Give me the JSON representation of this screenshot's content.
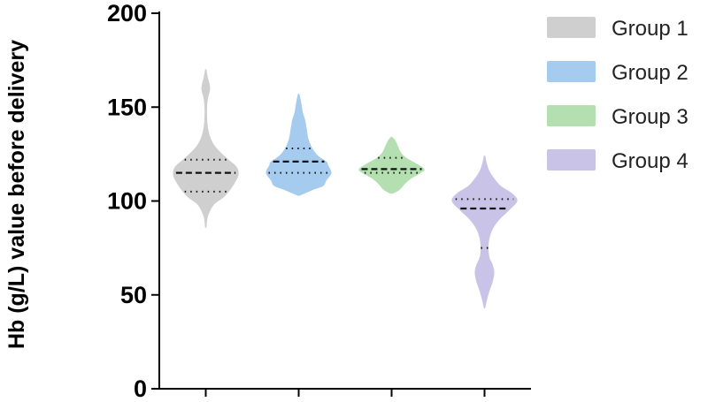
{
  "chart_data": {
    "type": "violin",
    "ylabel": "Hb (g/L) value before delivery",
    "xlabel": "",
    "ylim": [
      0,
      200
    ],
    "yticks": [
      0,
      50,
      100,
      150,
      200
    ],
    "legend_position": "right",
    "series": [
      {
        "name": "Group 1",
        "color": "#cfcfcf",
        "min": 86,
        "max": 170,
        "q1": 105,
        "median": 115,
        "q3": 122,
        "density": [
          [
            86,
            0.02
          ],
          [
            92,
            0.07
          ],
          [
            98,
            0.25
          ],
          [
            102,
            0.55
          ],
          [
            106,
            0.75
          ],
          [
            110,
            0.9
          ],
          [
            114,
            1.0
          ],
          [
            118,
            0.95
          ],
          [
            122,
            0.7
          ],
          [
            126,
            0.45
          ],
          [
            130,
            0.25
          ],
          [
            135,
            0.12
          ],
          [
            140,
            0.06
          ],
          [
            145,
            0.04
          ],
          [
            150,
            0.04
          ],
          [
            155,
            0.07
          ],
          [
            159,
            0.13
          ],
          [
            162,
            0.12
          ],
          [
            166,
            0.06
          ],
          [
            170,
            0.02
          ]
        ]
      },
      {
        "name": "Group 2",
        "color": "#a5cbee",
        "min": 103,
        "max": 157,
        "q1": 115,
        "median": 121,
        "q3": 128,
        "density": [
          [
            103,
            0.05
          ],
          [
            106,
            0.45
          ],
          [
            108,
            0.75
          ],
          [
            111,
            0.85
          ],
          [
            115,
            1.0
          ],
          [
            119,
            0.9
          ],
          [
            121,
            0.85
          ],
          [
            124,
            0.6
          ],
          [
            128,
            0.42
          ],
          [
            133,
            0.3
          ],
          [
            138,
            0.25
          ],
          [
            143,
            0.2
          ],
          [
            147,
            0.13
          ],
          [
            151,
            0.09
          ],
          [
            154,
            0.06
          ],
          [
            157,
            0.02
          ]
        ]
      },
      {
        "name": "Group 3",
        "color": "#b3dfb1",
        "min": 104,
        "max": 134,
        "q1": 115,
        "median": 117,
        "q3": 123,
        "density": [
          [
            104,
            0.05
          ],
          [
            106,
            0.25
          ],
          [
            109,
            0.4
          ],
          [
            112,
            0.6
          ],
          [
            115,
            0.9
          ],
          [
            117,
            1.0
          ],
          [
            120,
            0.75
          ],
          [
            123,
            0.45
          ],
          [
            126,
            0.28
          ],
          [
            129,
            0.2
          ],
          [
            132,
            0.12
          ],
          [
            134,
            0.03
          ]
        ]
      },
      {
        "name": "Group 4",
        "color": "#c9c3e8",
        "min": 43,
        "max": 124,
        "q1": 75,
        "median": 96,
        "q3": 101,
        "density": [
          [
            43,
            0.02
          ],
          [
            47,
            0.07
          ],
          [
            52,
            0.15
          ],
          [
            57,
            0.25
          ],
          [
            62,
            0.3
          ],
          [
            66,
            0.25
          ],
          [
            70,
            0.15
          ],
          [
            75,
            0.12
          ],
          [
            80,
            0.15
          ],
          [
            85,
            0.25
          ],
          [
            90,
            0.45
          ],
          [
            95,
            0.75
          ],
          [
            100,
            1.0
          ],
          [
            104,
            0.85
          ],
          [
            108,
            0.5
          ],
          [
            112,
            0.3
          ],
          [
            116,
            0.15
          ],
          [
            120,
            0.07
          ],
          [
            124,
            0.02
          ]
        ]
      }
    ]
  }
}
